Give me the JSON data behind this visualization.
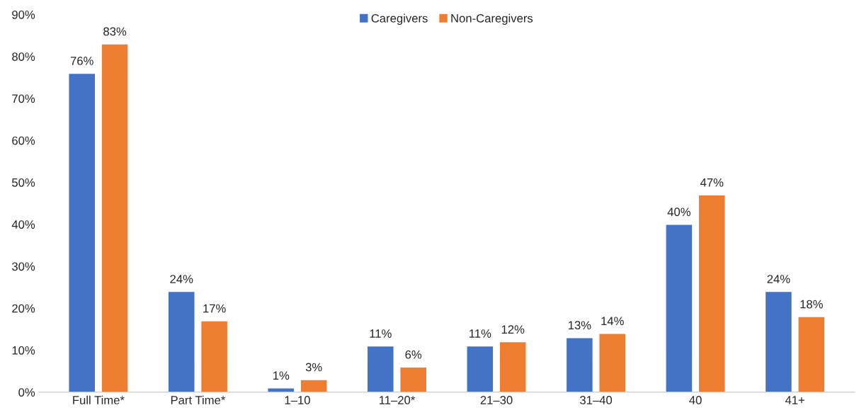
{
  "chart_data": {
    "type": "bar",
    "categories": [
      "Full Time*",
      "Part Time*",
      "1–10",
      "11–20*",
      "21–30",
      "31–40",
      "40",
      "41+"
    ],
    "series": [
      {
        "name": "Caregivers",
        "color": "#4472c4",
        "values": [
          76,
          24,
          1,
          11,
          11,
          13,
          40,
          24
        ],
        "value_labels": [
          "76%",
          "24%",
          "1%",
          "11%",
          "11%",
          "13%",
          "40%",
          "24%"
        ]
      },
      {
        "name": "Non-Caregivers",
        "color": "#ed7d31",
        "values": [
          83,
          17,
          3,
          6,
          12,
          14,
          47,
          18
        ],
        "value_labels": [
          "83%",
          "17%",
          "3%",
          "6%",
          "12%",
          "14%",
          "47%",
          "18%"
        ]
      }
    ],
    "ylim": [
      0,
      90
    ],
    "yticks": [
      {
        "value": 0,
        "label": "0%"
      },
      {
        "value": 10,
        "label": "10%"
      },
      {
        "value": 20,
        "label": "20%"
      },
      {
        "value": 30,
        "label": "30%"
      },
      {
        "value": 40,
        "label": "40%"
      },
      {
        "value": 50,
        "label": "50%"
      },
      {
        "value": 60,
        "label": "60%"
      },
      {
        "value": 70,
        "label": "70%"
      },
      {
        "value": 80,
        "label": "80%"
      },
      {
        "value": 90,
        "label": "90%"
      }
    ],
    "grid": false,
    "legend": "top"
  }
}
